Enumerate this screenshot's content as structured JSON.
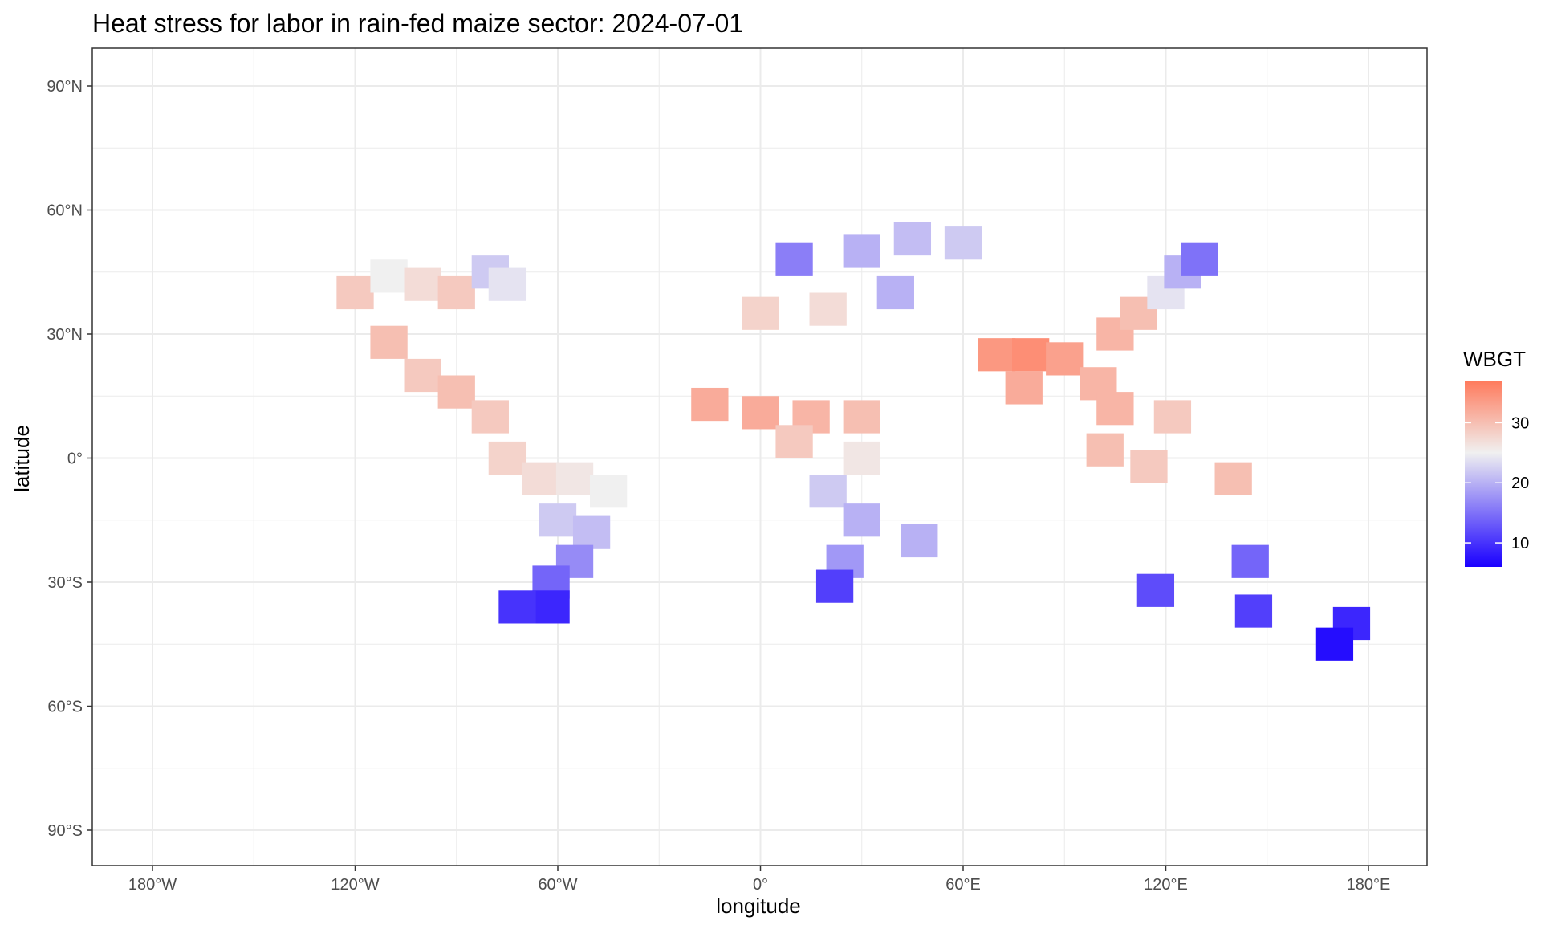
{
  "chart_data": {
    "type": "heatmap",
    "title": "Heat stress for labor in rain-fed maize sector: 2024-07-01",
    "xlabel": "longitude",
    "ylabel": "latitude",
    "xlim": [
      -180,
      180
    ],
    "ylim": [
      -90,
      90
    ],
    "grid": true,
    "x_ticks": [
      {
        "value": -180,
        "label": "180°W"
      },
      {
        "value": -120,
        "label": "120°W"
      },
      {
        "value": -60,
        "label": "60°W"
      },
      {
        "value": 0,
        "label": "0°"
      },
      {
        "value": 60,
        "label": "60°E"
      },
      {
        "value": 120,
        "label": "120°E"
      },
      {
        "value": 180,
        "label": "180°E"
      }
    ],
    "y_ticks": [
      {
        "value": 90,
        "label": "90°N"
      },
      {
        "value": 60,
        "label": "60°N"
      },
      {
        "value": 30,
        "label": "30°N"
      },
      {
        "value": 0,
        "label": "0°"
      },
      {
        "value": -30,
        "label": "30°S"
      },
      {
        "value": -60,
        "label": "60°S"
      },
      {
        "value": -90,
        "label": "90°S"
      }
    ],
    "legend": {
      "title": "WBGT",
      "position": "right",
      "min": 6,
      "max": 37,
      "midpoint": 25,
      "ticks": [
        10,
        20,
        30
      ],
      "colors": {
        "low": "#1a00ff",
        "mid": "#f0f0f0",
        "high": "#ff7a5c"
      }
    },
    "cells": [
      {
        "lon": -120,
        "lat": 40,
        "wbgt": 29
      },
      {
        "lon": -110,
        "lat": 44,
        "wbgt": 25
      },
      {
        "lon": -100,
        "lat": 42,
        "wbgt": 27
      },
      {
        "lon": -90,
        "lat": 40,
        "wbgt": 29
      },
      {
        "lon": -80,
        "lat": 45,
        "wbgt": 22
      },
      {
        "lon": -75,
        "lat": 42,
        "wbgt": 24
      },
      {
        "lon": -110,
        "lat": 28,
        "wbgt": 30
      },
      {
        "lon": -100,
        "lat": 20,
        "wbgt": 29
      },
      {
        "lon": -90,
        "lat": 16,
        "wbgt": 30
      },
      {
        "lon": -80,
        "lat": 10,
        "wbgt": 29
      },
      {
        "lon": -75,
        "lat": 0,
        "wbgt": 28
      },
      {
        "lon": -65,
        "lat": -5,
        "wbgt": 27
      },
      {
        "lon": -55,
        "lat": -5,
        "wbgt": 26
      },
      {
        "lon": -45,
        "lat": -8,
        "wbgt": 25
      },
      {
        "lon": -60,
        "lat": -15,
        "wbgt": 22
      },
      {
        "lon": -50,
        "lat": -18,
        "wbgt": 21
      },
      {
        "lon": -55,
        "lat": -25,
        "wbgt": 17
      },
      {
        "lon": -62,
        "lat": -30,
        "wbgt": 14
      },
      {
        "lon": -62,
        "lat": -36,
        "wbgt": 9
      },
      {
        "lon": -72,
        "lat": -36,
        "wbgt": 10
      },
      {
        "lon": -15,
        "lat": 13,
        "wbgt": 32
      },
      {
        "lon": 0,
        "lat": 11,
        "wbgt": 32
      },
      {
        "lon": 15,
        "lat": 10,
        "wbgt": 31
      },
      {
        "lon": 30,
        "lat": 10,
        "wbgt": 30
      },
      {
        "lon": 10,
        "lat": 4,
        "wbgt": 29
      },
      {
        "lon": 30,
        "lat": 0,
        "wbgt": 26
      },
      {
        "lon": 20,
        "lat": -8,
        "wbgt": 22
      },
      {
        "lon": 30,
        "lat": -15,
        "wbgt": 20
      },
      {
        "lon": 25,
        "lat": -25,
        "wbgt": 18
      },
      {
        "lon": 22,
        "lat": -31,
        "wbgt": 11
      },
      {
        "lon": 47,
        "lat": -20,
        "wbgt": 20
      },
      {
        "lon": 0,
        "lat": 35,
        "wbgt": 28
      },
      {
        "lon": 20,
        "lat": 36,
        "wbgt": 27
      },
      {
        "lon": 10,
        "lat": 48,
        "wbgt": 16
      },
      {
        "lon": 30,
        "lat": 50,
        "wbgt": 20
      },
      {
        "lon": 45,
        "lat": 53,
        "wbgt": 21
      },
      {
        "lon": 60,
        "lat": 52,
        "wbgt": 22
      },
      {
        "lon": 40,
        "lat": 40,
        "wbgt": 20
      },
      {
        "lon": 70,
        "lat": 25,
        "wbgt": 34
      },
      {
        "lon": 80,
        "lat": 25,
        "wbgt": 35
      },
      {
        "lon": 78,
        "lat": 17,
        "wbgt": 32
      },
      {
        "lon": 90,
        "lat": 24,
        "wbgt": 33
      },
      {
        "lon": 105,
        "lat": 30,
        "wbgt": 31
      },
      {
        "lon": 112,
        "lat": 35,
        "wbgt": 30
      },
      {
        "lon": 120,
        "lat": 40,
        "wbgt": 24
      },
      {
        "lon": 125,
        "lat": 45,
        "wbgt": 20
      },
      {
        "lon": 130,
        "lat": 48,
        "wbgt": 15
      },
      {
        "lon": 100,
        "lat": 18,
        "wbgt": 31
      },
      {
        "lon": 105,
        "lat": 12,
        "wbgt": 31
      },
      {
        "lon": 102,
        "lat": 2,
        "wbgt": 30
      },
      {
        "lon": 115,
        "lat": -2,
        "wbgt": 29
      },
      {
        "lon": 122,
        "lat": 10,
        "wbgt": 29
      },
      {
        "lon": 140,
        "lat": -5,
        "wbgt": 30
      },
      {
        "lon": 117,
        "lat": -32,
        "wbgt": 12
      },
      {
        "lon": 145,
        "lat": -25,
        "wbgt": 14
      },
      {
        "lon": 146,
        "lat": -37,
        "wbgt": 11
      },
      {
        "lon": 175,
        "lat": -40,
        "wbgt": 9
      },
      {
        "lon": 170,
        "lat": -45,
        "wbgt": 7
      }
    ]
  }
}
